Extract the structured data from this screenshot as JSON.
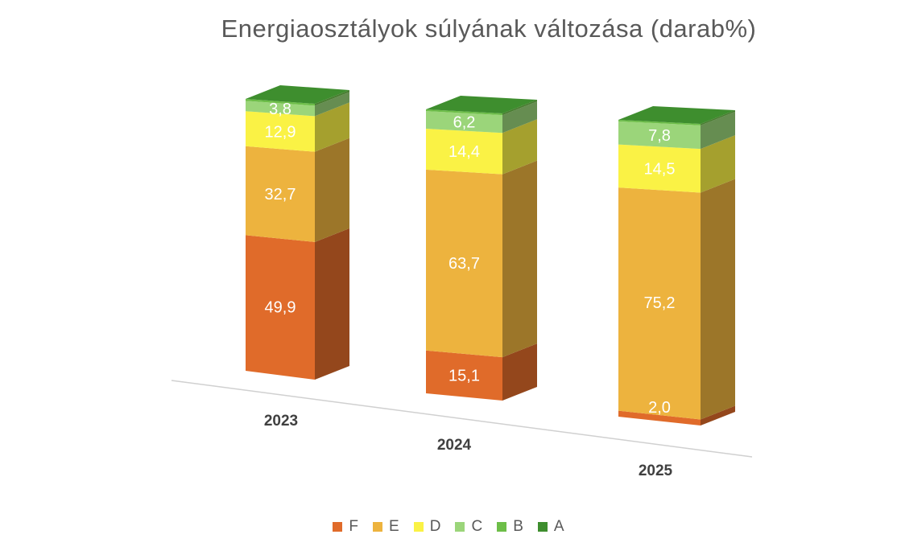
{
  "chart_data": {
    "type": "bar",
    "stacked": true,
    "three_d": true,
    "title": "Energiaosztályok súlyának változása (darab%)",
    "categories": [
      "2023",
      "2024",
      "2025"
    ],
    "series": [
      {
        "name": "F",
        "color": "#E06B2A",
        "values": [
          49.9,
          15.1,
          2.0
        ]
      },
      {
        "name": "E",
        "color": "#EDB33E",
        "values": [
          32.7,
          63.7,
          75.2
        ]
      },
      {
        "name": "D",
        "color": "#FAF245",
        "values": [
          12.9,
          14.4,
          14.5
        ]
      },
      {
        "name": "C",
        "color": "#9BD57A",
        "values": [
          3.8,
          6.2,
          7.8
        ]
      },
      {
        "name": "B",
        "color": "#6DBE48",
        "values": [
          0.7,
          0.6,
          0.5
        ]
      },
      {
        "name": "A",
        "color": "#3E8E2E",
        "values": [
          0.0,
          0.0,
          0.0
        ]
      }
    ],
    "data_labels": [
      [
        "49,9",
        "32,7",
        "12,9",
        "3,8"
      ],
      [
        "15,1",
        "63,7",
        "14,4",
        "6,2"
      ],
      [
        "2,0",
        "75,2",
        "14,5",
        "7,8"
      ]
    ],
    "legend_position": "bottom",
    "grid": false
  }
}
